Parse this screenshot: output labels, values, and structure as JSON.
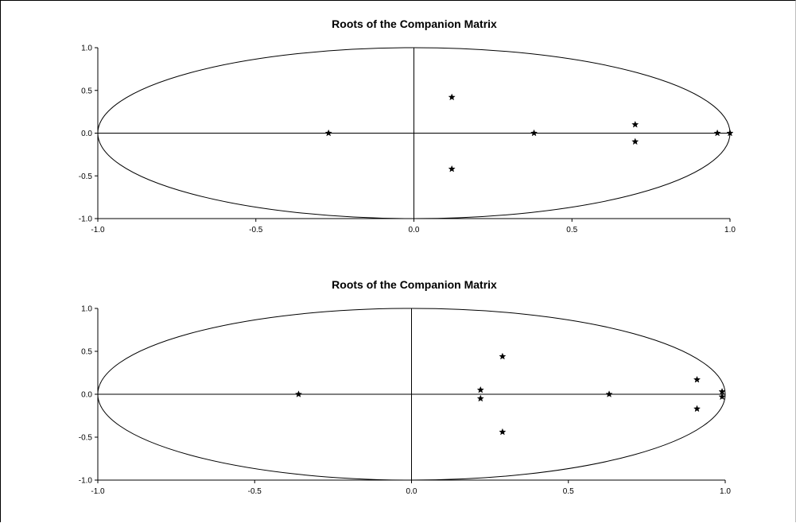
{
  "chart_data": [
    {
      "type": "scatter",
      "title": "Roots of the Companion Matrix",
      "xlim": [
        -1.0,
        1.0
      ],
      "ylim": [
        -1.0,
        1.0
      ],
      "x_ticks": [
        "-1.0",
        "-0.5",
        "0.0",
        "0.5",
        "1.0"
      ],
      "y_ticks": [
        "1.0",
        "0.5",
        "0.0",
        "-0.5",
        "-1.0"
      ],
      "unit_circle": true,
      "marker": "star",
      "points": [
        {
          "x": -0.27,
          "y": 0.0
        },
        {
          "x": 0.12,
          "y": 0.42
        },
        {
          "x": 0.12,
          "y": -0.42
        },
        {
          "x": 0.38,
          "y": 0.0
        },
        {
          "x": 0.7,
          "y": 0.1
        },
        {
          "x": 0.7,
          "y": -0.1
        },
        {
          "x": 0.96,
          "y": 0.0
        },
        {
          "x": 1.0,
          "y": 0.0
        }
      ]
    },
    {
      "type": "scatter",
      "title": "Roots of the Companion Matrix",
      "xlim": [
        -1.0,
        1.0
      ],
      "ylim": [
        -1.0,
        1.0
      ],
      "x_ticks": [
        "-1.0",
        "-0.5",
        "0.0",
        "0.5",
        "1.0"
      ],
      "y_ticks": [
        "1.0",
        "0.5",
        "0.0",
        "-0.5",
        "-1.0"
      ],
      "unit_circle": true,
      "marker": "star",
      "points": [
        {
          "x": -0.36,
          "y": 0.0
        },
        {
          "x": 0.22,
          "y": 0.05
        },
        {
          "x": 0.22,
          "y": -0.05
        },
        {
          "x": 0.29,
          "y": 0.44
        },
        {
          "x": 0.29,
          "y": -0.44
        },
        {
          "x": 0.63,
          "y": 0.0
        },
        {
          "x": 0.91,
          "y": 0.17
        },
        {
          "x": 0.91,
          "y": -0.17
        },
        {
          "x": 0.99,
          "y": 0.03
        },
        {
          "x": 0.99,
          "y": -0.03
        }
      ]
    }
  ]
}
